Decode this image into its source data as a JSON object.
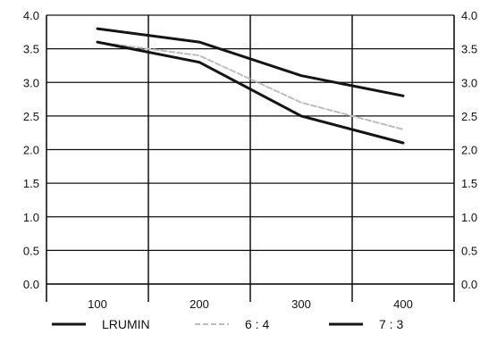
{
  "chart_data": {
    "type": "line",
    "title": "",
    "xlabel": "",
    "ylabel": "",
    "categories": [
      "100",
      "200",
      "300",
      "400"
    ],
    "x": [
      100,
      200,
      300,
      400
    ],
    "ylim": [
      0,
      4
    ],
    "yticks": [
      "0.0",
      "0.5",
      "1.0",
      "1.5",
      "2.0",
      "2.5",
      "3.0",
      "3.5",
      "4.0"
    ],
    "grid": true,
    "legend_placement": "bottom",
    "series": [
      {
        "name": "LRUMIN",
        "color": "#141414",
        "style": "solid",
        "values": [
          3.8,
          3.6,
          3.1,
          2.8
        ]
      },
      {
        "name": "6 : 4",
        "color": "#bdbdbd",
        "style": "dashed",
        "values": [
          3.6,
          3.4,
          2.7,
          2.3
        ]
      },
      {
        "name": "7 : 3",
        "color": "#141414",
        "style": "solid",
        "values": [
          3.6,
          3.3,
          2.5,
          2.1
        ]
      }
    ]
  }
}
